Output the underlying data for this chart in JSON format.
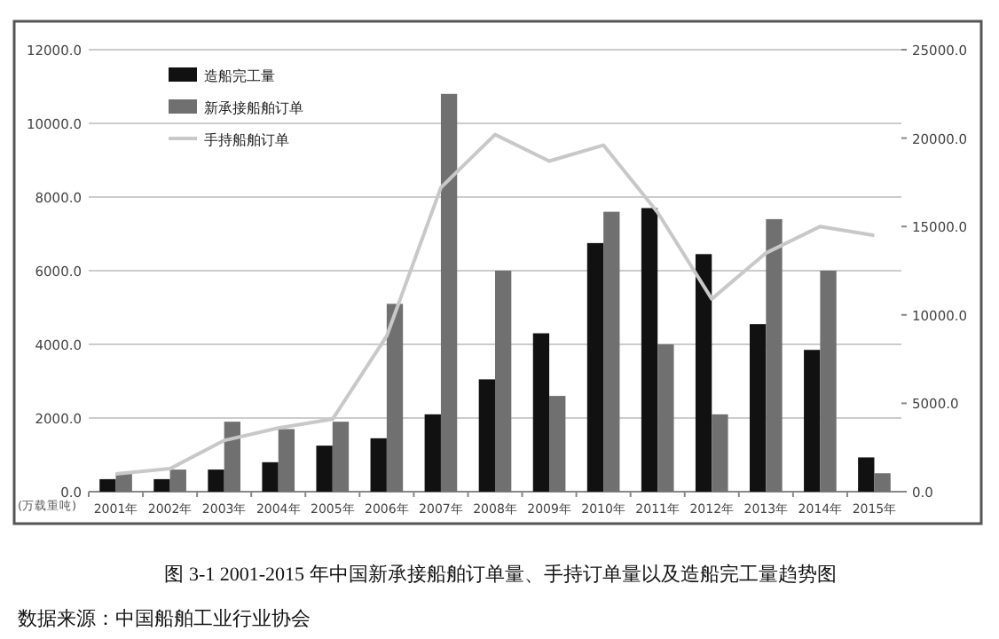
{
  "chart_data": {
    "type": "bar",
    "title": "图 3-1    2001-2015 年中国新承接船舶订单量、手持订单量以及造船完工量趋势图",
    "ylabel": "(万载重吨)",
    "annotations": [
      "数据来源：中国船舶工业行业协会"
    ],
    "categories": [
      "2001年",
      "2002年",
      "2003年",
      "2004年",
      "2005年",
      "2006年",
      "2007年",
      "2008年",
      "2009年",
      "2010年",
      "2011年",
      "2012年",
      "2013年",
      "2014年",
      "2015年"
    ],
    "series": [
      {
        "name": "造船完工量",
        "color": "#111111",
        "values": [
          340,
          340,
          600,
          800,
          1250,
          1450,
          2100,
          3050,
          4300,
          6750,
          7700,
          6450,
          4550,
          3850,
          930
        ]
      },
      {
        "name": "新承接船舶订单",
        "color": "#707070",
        "values": [
          500,
          600,
          1900,
          1700,
          1900,
          5100,
          10800,
          6000,
          2600,
          7600,
          4000,
          2100,
          7400,
          6000,
          500
        ]
      },
      {
        "name": "手持船舶订单",
        "type": "line",
        "axis": "y2",
        "color": "#c8c8c8",
        "values": [
          1000,
          1300,
          2900,
          3600,
          4100,
          8800,
          17200,
          20200,
          18700,
          19600,
          15800,
          10900,
          13500,
          15000,
          14500
        ]
      }
    ],
    "ylim": [
      0,
      12000
    ],
    "yticks": [
      {
        "value": 0,
        "label": "0.0"
      },
      {
        "value": 2000,
        "label": "2000.0"
      },
      {
        "value": 4000,
        "label": "4000.0"
      },
      {
        "value": 6000,
        "label": "6000.0"
      },
      {
        "value": 8000,
        "label": "8000.0"
      },
      {
        "value": 10000,
        "label": "10000.0"
      },
      {
        "value": 12000,
        "label": "12000.0"
      }
    ],
    "y2lim": [
      0,
      25000
    ],
    "y2ticks": [
      {
        "value": 0,
        "label": "0.0"
      },
      {
        "value": 5000,
        "label": "5000.0"
      },
      {
        "value": 10000,
        "label": "10000.0"
      },
      {
        "value": 15000,
        "label": "15000.0"
      },
      {
        "value": 20000,
        "label": "20000.0"
      },
      {
        "value": 25000,
        "label": "25000.0"
      }
    ],
    "grid": "y",
    "legend": "top left"
  }
}
